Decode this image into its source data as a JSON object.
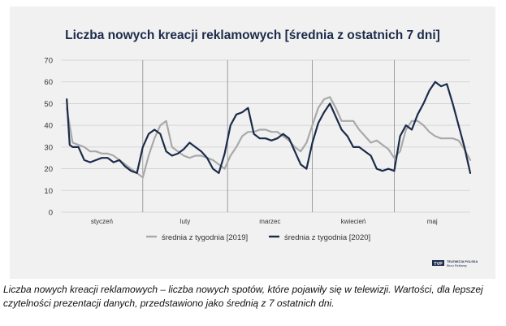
{
  "caption": "Liczba nowych kreacji reklamowych – liczba nowych spotów, które pojawiły się w telewizji. Wartości, dla lepszej czytelności prezentacji danych, przedstawiono jako średnią z 7 ostatnich dni.",
  "logo": {
    "badge": "TVP",
    "line1": "TELEWIZJA POLSKA",
    "line2": "Biuro Reklamy"
  },
  "colors": {
    "series2019": "#a9a9a9",
    "series2020": "#1c2b4a",
    "title": "#1c2b4a",
    "grid": "#cfcfcf",
    "divider": "#8a8a8a"
  },
  "chart_data": {
    "type": "line",
    "title": "Liczba nowych kreacji reklamowych [średnia z ostatnich 7 dni]",
    "xlabel": "",
    "ylabel": "",
    "ylim": [
      0,
      70
    ],
    "yticks": [
      "0",
      "10",
      "20",
      "30",
      "40",
      "50",
      "60",
      "70"
    ],
    "x_range": [
      0,
      140
    ],
    "months": [
      "styczeń",
      "luty",
      "marzec",
      "kwiecień",
      "maj"
    ],
    "month_boundaries": [
      28,
      57,
      86,
      114
    ],
    "grid": true,
    "legend_position": "bottom-center",
    "series": [
      {
        "name": "średnia z tygodnia [2019]",
        "x": [
          2,
          4,
          6,
          8,
          10,
          12,
          14,
          16,
          18,
          20,
          22,
          24,
          26,
          28,
          30,
          32,
          34,
          36,
          38,
          40,
          42,
          44,
          46,
          48,
          50,
          52,
          54,
          56,
          58,
          60,
          62,
          64,
          66,
          68,
          70,
          72,
          74,
          76,
          78,
          80,
          82,
          84,
          86,
          88,
          90,
          92,
          94,
          96,
          98,
          100,
          102,
          104,
          106,
          108,
          110,
          112,
          114,
          116,
          118,
          120,
          122,
          124,
          126,
          128,
          130,
          132,
          134,
          136,
          138,
          140
        ],
        "values": [
          48,
          32,
          31,
          30,
          28,
          28,
          27,
          27,
          26,
          24,
          22,
          20,
          18,
          16,
          26,
          34,
          40,
          42,
          30,
          28,
          26,
          25,
          26,
          26,
          25,
          24,
          22,
          20,
          26,
          30,
          35,
          37,
          37,
          38,
          38,
          37,
          37,
          35,
          33,
          30,
          28,
          32,
          40,
          48,
          52,
          53,
          48,
          42,
          42,
          42,
          38,
          35,
          32,
          33,
          31,
          29,
          25,
          28,
          38,
          42,
          42,
          40,
          37,
          35,
          34,
          34,
          34,
          33,
          29,
          24
        ]
      },
      {
        "name": "średnia z tygodnia [2020]",
        "x": [
          2,
          3,
          4,
          6,
          8,
          10,
          12,
          14,
          16,
          18,
          20,
          22,
          24,
          26,
          28,
          30,
          32,
          34,
          36,
          38,
          40,
          42,
          44,
          46,
          48,
          50,
          52,
          54,
          56,
          58,
          60,
          62,
          64,
          66,
          68,
          70,
          72,
          74,
          76,
          78,
          80,
          82,
          84,
          86,
          88,
          90,
          92,
          94,
          96,
          98,
          100,
          102,
          104,
          106,
          108,
          110,
          112,
          114,
          116,
          118,
          120,
          122,
          124,
          126,
          128,
          130,
          132,
          134,
          136,
          138,
          140
        ],
        "values": [
          52,
          31,
          30,
          30,
          24,
          23,
          24,
          25,
          25,
          23,
          24,
          21,
          19,
          18,
          30,
          36,
          38,
          36,
          28,
          26,
          27,
          29,
          32,
          30,
          28,
          25,
          20,
          18,
          27,
          40,
          45,
          46,
          48,
          36,
          34,
          34,
          33,
          34,
          36,
          34,
          28,
          22,
          20,
          32,
          41,
          46,
          50,
          44,
          38,
          35,
          30,
          30,
          28,
          26,
          20,
          19,
          20,
          19,
          35,
          40,
          38,
          45,
          50,
          56,
          60,
          58,
          59,
          50,
          40,
          30,
          18
        ]
      }
    ]
  }
}
